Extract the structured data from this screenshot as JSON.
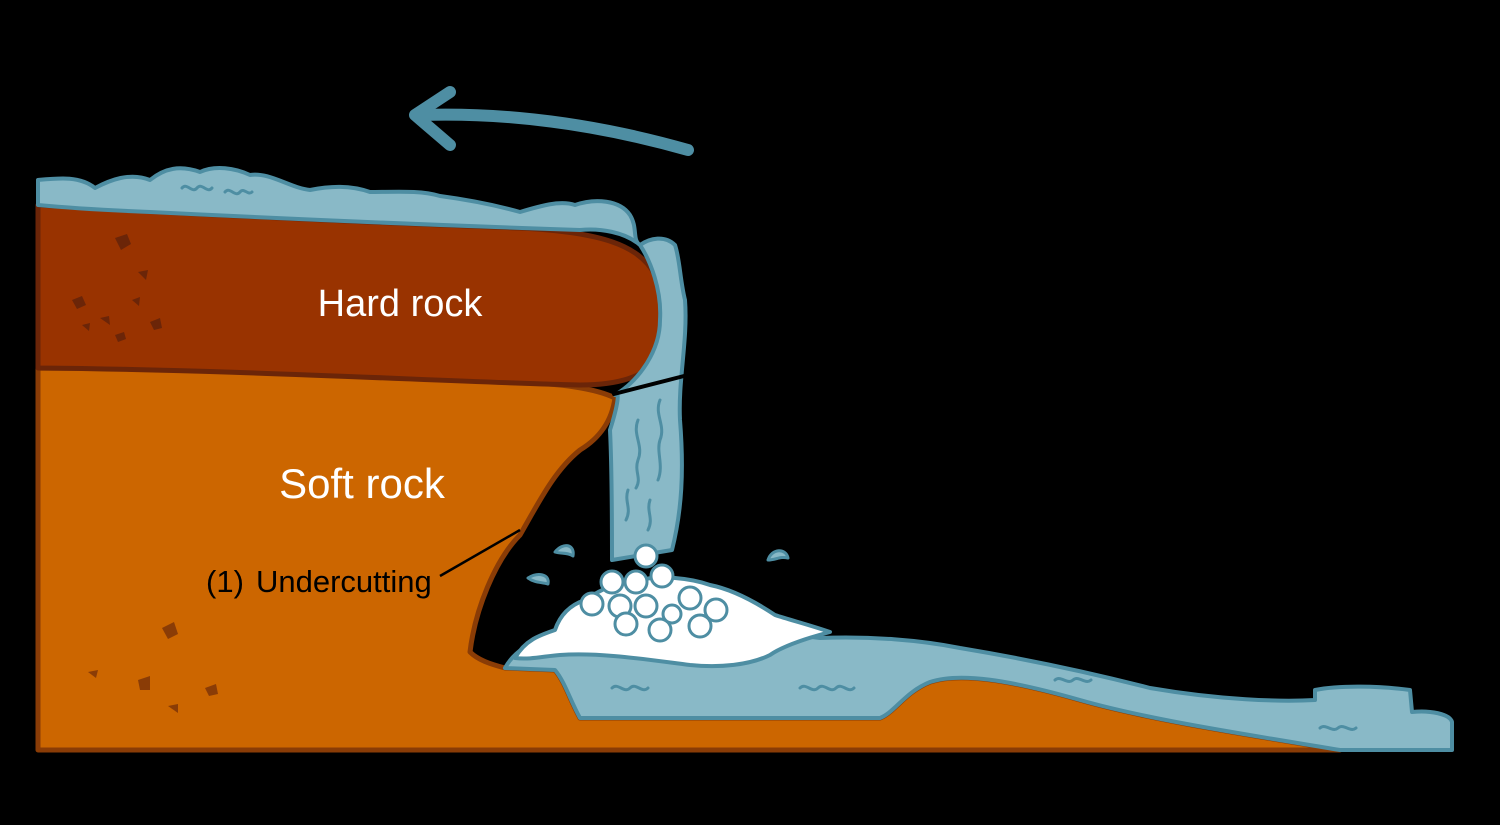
{
  "labels": {
    "hard_rock": "Hard rock",
    "soft_rock": "Soft rock",
    "undercutting_number": "(1)",
    "undercutting": "Undercutting"
  },
  "colors": {
    "background": "#000000",
    "hard_rock": "#993300",
    "hard_rock_outline": "#6b2508",
    "soft_rock": "#cc6600",
    "soft_rock_outline": "#8a3c06",
    "water": "#89b9c7",
    "water_outline": "#4e8ea3",
    "foam": "#ffffff"
  },
  "icons": {
    "flow_direction": "arrow-left-curved"
  }
}
